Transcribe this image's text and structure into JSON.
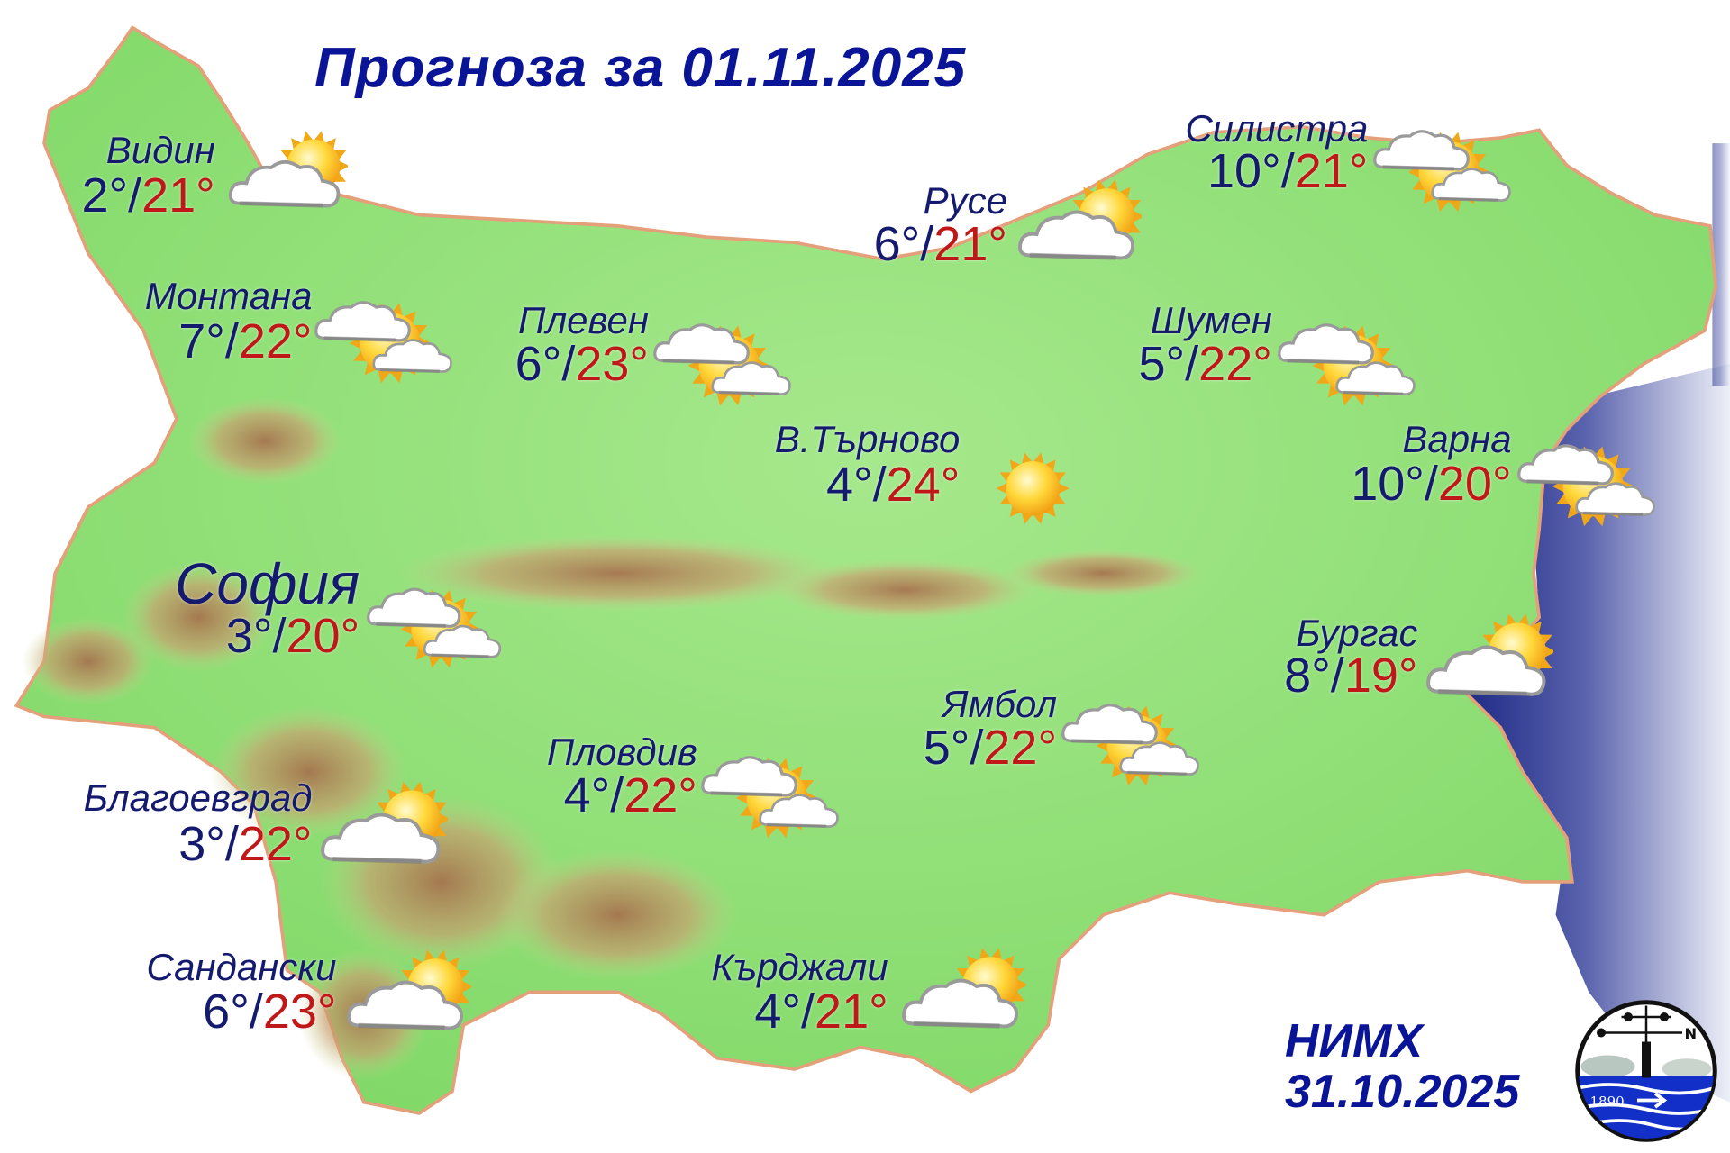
{
  "title": "Прогноза за 01.11.2025",
  "colors": {
    "min_temp": "#141a6e",
    "max_temp": "#c01818",
    "title": "#0a1496",
    "land": "#8fe07a",
    "sea": "#2a3590"
  },
  "cities": [
    {
      "id": "vidin",
      "name": "Видин",
      "min": "2°",
      "sep": "/",
      "max": "21°",
      "icon": "partly-cloudy-icon"
    },
    {
      "id": "montana",
      "name": "Монтана",
      "min": "7°",
      "sep": "/",
      "max": "22°",
      "icon": "sun-between-clouds-icon"
    },
    {
      "id": "pleven",
      "name": "Плевен",
      "min": "6°",
      "sep": "/",
      "max": "23°",
      "icon": "sun-between-clouds-icon"
    },
    {
      "id": "ruse",
      "name": "Русе",
      "min": "6°",
      "sep": "/",
      "max": "21°",
      "icon": "partly-cloudy-icon"
    },
    {
      "id": "silistra",
      "name": "Силистра",
      "min": "10°",
      "sep": "/",
      "max": "21°",
      "icon": "sun-between-clouds-icon"
    },
    {
      "id": "shumen",
      "name": "Шумен",
      "min": "5°",
      "sep": "/",
      "max": "22°",
      "icon": "sun-between-clouds-icon"
    },
    {
      "id": "tarnovo",
      "name": "В.Търново",
      "min": "4°",
      "sep": "/",
      "max": "24°",
      "icon": "sunny-icon"
    },
    {
      "id": "varna",
      "name": "Варна",
      "min": "10°",
      "sep": "/",
      "max": "20°",
      "icon": "sun-between-clouds-icon"
    },
    {
      "id": "sofia",
      "name": "София",
      "min": "3°",
      "sep": "/",
      "max": "20°",
      "icon": "sun-between-clouds-icon"
    },
    {
      "id": "burgas",
      "name": "Бургас",
      "min": "8°",
      "sep": "/",
      "max": "19°",
      "icon": "partly-cloudy-icon"
    },
    {
      "id": "yambol",
      "name": "Ямбол",
      "min": "5°",
      "sep": "/",
      "max": "22°",
      "icon": "sun-between-clouds-icon"
    },
    {
      "id": "plovdiv",
      "name": "Пловдив",
      "min": "4°",
      "sep": "/",
      "max": "22°",
      "icon": "sun-between-clouds-icon"
    },
    {
      "id": "blagoevgrad",
      "name": "Благоевград",
      "min": "3°",
      "sep": "/",
      "max": "22°",
      "icon": "partly-cloudy-icon"
    },
    {
      "id": "sandanski",
      "name": "Сандански",
      "min": "6°",
      "sep": "/",
      "max": "23°",
      "icon": "partly-cloudy-icon"
    },
    {
      "id": "kardzhali",
      "name": "Кърджали",
      "min": "4°",
      "sep": "/",
      "max": "21°",
      "icon": "partly-cloudy-icon"
    }
  ],
  "footer": {
    "agency": "НИМХ",
    "issued": "31.10.2025",
    "logo_text": "1890",
    "logo_compass": "N"
  }
}
